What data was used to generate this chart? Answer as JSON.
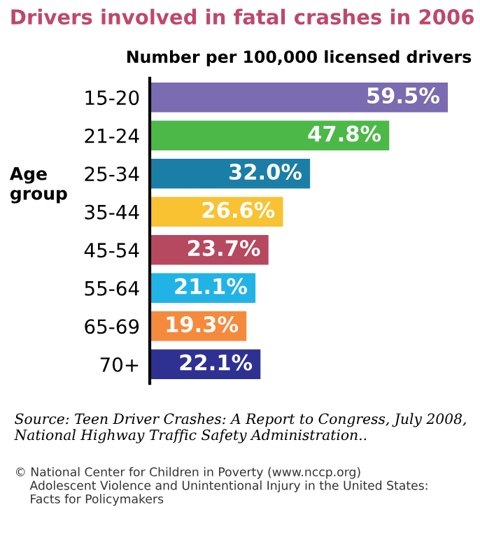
{
  "chart_data": {
    "type": "bar",
    "orientation": "horizontal",
    "title": "Drivers involved in fatal crashes in 2006",
    "xlabel": "Number per 100,000 licensed drivers",
    "ylabel": "Age group",
    "categories": [
      "15-20",
      "21-24",
      "25-34",
      "35-44",
      "45-54",
      "55-64",
      "65-69",
      "70+"
    ],
    "values": [
      59.5,
      47.8,
      32.0,
      26.6,
      23.7,
      21.1,
      19.3,
      22.1
    ],
    "value_labels": [
      "59.5%",
      "47.8%",
      "32.0%",
      "26.6%",
      "23.7%",
      "21.1%",
      "19.3%",
      "22.1%"
    ],
    "colors": [
      "#7b6bb0",
      "#4cb848",
      "#1b7ea6",
      "#f8c232",
      "#b6495f",
      "#22b3e6",
      "#f58a3c",
      "#2e3192"
    ],
    "tick_labels": "y",
    "grid": false,
    "legend": false,
    "annotations": [
      "Source: Teen Driver Crashes: A Report to Congress, July 2008,\nNational Highway Traffic Safety Administration..",
      "© National Center for Children in Poverty (www.nccp.org)\n    Adolescent Violence and Unintentional Injury in the United States:\n    Facts for Policymakers"
    ]
  }
}
